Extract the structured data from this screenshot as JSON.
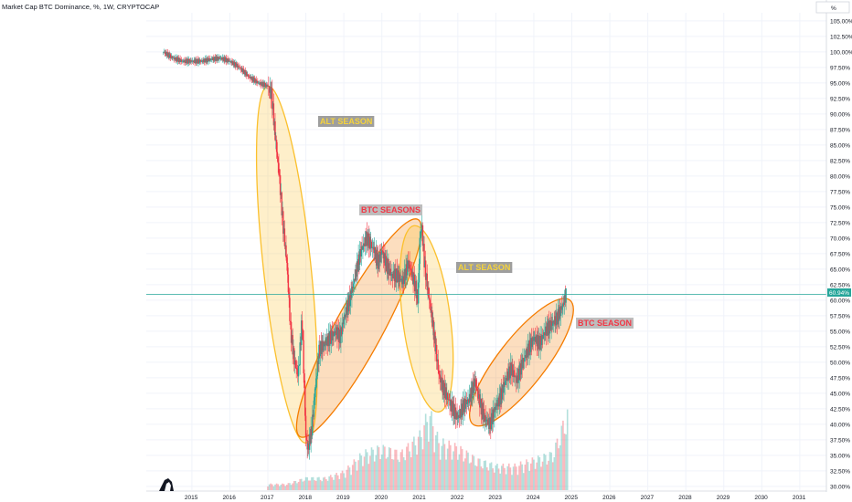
{
  "header": {
    "title": "Market Cap BTC Dominance, %, 1W, CRYPTOCAP"
  },
  "scale_button": {
    "label": "%"
  },
  "current_price": {
    "label": "60.94%",
    "value": 60.94,
    "color": "#26a69a"
  },
  "annotations": [
    {
      "text": "ALT SEASON",
      "text_color": "#f5d33b",
      "bg_color": "#9e9e9e"
    },
    {
      "text": "BTC SEASONS",
      "text_color": "#f23645",
      "bg_color": "#bdbdbd"
    },
    {
      "text": "ALT SEASON",
      "text_color": "#f5d33b",
      "bg_color": "#9e9e9e"
    },
    {
      "text": "BTC SEASON",
      "text_color": "#f23645",
      "bg_color": "#bdbdbd"
    }
  ],
  "chart_data": {
    "type": "candlestick",
    "title": "Market Cap BTC Dominance, %, 1W, CRYPTOCAP",
    "xlabel": "",
    "ylabel": "",
    "x_ticks": [
      "2015",
      "2016",
      "2017",
      "2018",
      "2019",
      "2020",
      "2021",
      "2022",
      "2023",
      "2024",
      "2025",
      "2026",
      "2027",
      "2028",
      "2029",
      "2030",
      "2031"
    ],
    "y_ticks": [
      "105.00%",
      "102.50%",
      "100.00%",
      "97.50%",
      "95.00%",
      "92.50%",
      "90.00%",
      "87.50%",
      "85.00%",
      "82.50%",
      "80.00%",
      "77.50%",
      "75.00%",
      "72.50%",
      "70.00%",
      "67.50%",
      "65.00%",
      "62.50%",
      "60.00%",
      "57.50%",
      "55.00%",
      "52.50%",
      "50.00%",
      "47.50%",
      "45.00%",
      "42.50%",
      "40.00%",
      "37.50%",
      "35.00%",
      "32.50%",
      "30.00%"
    ],
    "xlim": [
      2013.8,
      2031.7
    ],
    "ylim": [
      29.4,
      106.3
    ],
    "series": [
      {
        "x": [
          2014.25,
          2014.5,
          2014.75,
          2015.0,
          2015.25,
          2015.5,
          2015.75,
          2016.0,
          2016.25,
          2016.5,
          2016.75,
          2017.0,
          2017.1,
          2017.2,
          2017.3,
          2017.4,
          2017.5,
          2017.6,
          2017.7,
          2017.8,
          2017.9,
          2018.0,
          2018.05,
          2018.15,
          2018.25,
          2018.35,
          2018.5,
          2018.65,
          2018.8,
          2018.9,
          2019.0,
          2019.15,
          2019.3,
          2019.45,
          2019.6,
          2019.7,
          2019.8,
          2019.9,
          2020.0,
          2020.1,
          2020.25,
          2020.4,
          2020.55,
          2020.7,
          2020.85,
          2020.95,
          2021.0,
          2021.05,
          2021.12,
          2021.2,
          2021.3,
          2021.4,
          2021.5,
          2021.6,
          2021.75,
          2021.9,
          2022.0,
          2022.15,
          2022.3,
          2022.45,
          2022.6,
          2022.7,
          2022.85,
          2023.0,
          2023.1,
          2023.25,
          2023.4,
          2023.55,
          2023.7,
          2023.85,
          2024.0,
          2024.15,
          2024.3,
          2024.45,
          2024.6,
          2024.75,
          2024.85
        ],
        "y": [
          100,
          99,
          98.5,
          98.5,
          98.5,
          98.8,
          99,
          98.5,
          97.5,
          96,
          95,
          94.5,
          93,
          86,
          80,
          72,
          66,
          55,
          50,
          48,
          57,
          38,
          36,
          39,
          46,
          52,
          53,
          54,
          55,
          54,
          57,
          60,
          64,
          68,
          70,
          69,
          68,
          66,
          68,
          66,
          64,
          64,
          63,
          66,
          63,
          60,
          70,
          72,
          66,
          62,
          58,
          53,
          48,
          46,
          44,
          42,
          41,
          43,
          44,
          47,
          43,
          41,
          40,
          43,
          44,
          47,
          49,
          47,
          50,
          52,
          54,
          53,
          55,
          56,
          57,
          59,
          60.94
        ]
      }
    ],
    "volume": {
      "x": [
        2017.0,
        2017.5,
        2018.0,
        2018.5,
        2019.0,
        2019.5,
        2020.0,
        2020.5,
        2021.0,
        2021.25,
        2021.5,
        2022.0,
        2022.5,
        2023.0,
        2023.5,
        2024.0,
        2024.5,
        2024.9
      ],
      "values": [
        1,
        1,
        2,
        2,
        3,
        6,
        7,
        6,
        9,
        13,
        8,
        7,
        5,
        4,
        4,
        5,
        6,
        13
      ]
    },
    "grid": true,
    "legend": "none"
  }
}
